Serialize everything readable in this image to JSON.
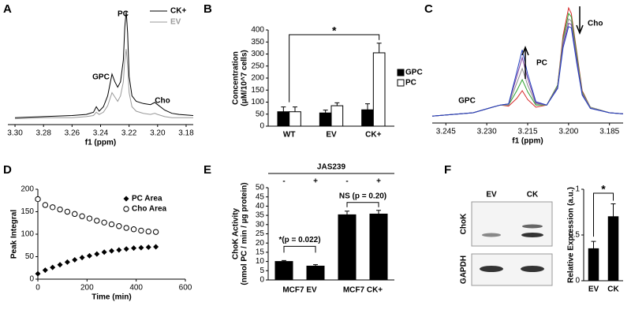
{
  "chart_data": [
    {
      "type": "line",
      "label": "A",
      "xlabel": "f1 (ppm)",
      "x": [
        3.3,
        3.28,
        3.26,
        3.25,
        3.245,
        3.243,
        3.241,
        3.238,
        3.235,
        3.232,
        3.23,
        3.228,
        3.226,
        3.224,
        3.223,
        3.222,
        3.221,
        3.22,
        3.218,
        3.215,
        3.21,
        3.205,
        3.202,
        3.2,
        3.195,
        3.19,
        3.185,
        3.175
      ],
      "xlim": [
        3.305,
        3.175
      ],
      "xticks": [
        {
          "value": 3.3,
          "label": "3.30"
        },
        3.28,
        3.26,
        3.24,
        3.22,
        {
          "value": 3.2,
          "label": "3.20"
        },
        3.18
      ],
      "ylim": [
        0,
        100
      ],
      "series": [
        {
          "name": "CK+",
          "color": "#000000",
          "values": [
            2,
            3,
            4,
            5,
            7,
            12,
            8,
            12,
            22,
            42,
            35,
            30,
            35,
            55,
            85,
            100,
            80,
            40,
            22,
            17,
            15,
            14,
            16,
            14,
            9,
            6,
            5,
            4
          ]
        },
        {
          "name": "EV",
          "color": "#999999",
          "values": [
            1,
            2,
            2,
            3,
            4,
            7,
            5,
            7,
            13,
            25,
            21,
            17,
            22,
            35,
            55,
            65,
            50,
            25,
            12,
            8,
            6,
            5,
            6,
            5,
            3,
            2,
            2,
            2
          ]
        }
      ],
      "annotations": [
        "PC",
        "GPC",
        "Cho"
      ]
    },
    {
      "type": "bar",
      "label": "B",
      "ylabel": [
        "Concentration",
        "(μM/10^7 cells)"
      ],
      "categories": [
        "WT",
        "EV",
        "CK+"
      ],
      "series": [
        {
          "name": "GPC",
          "color": "#000000",
          "values": [
            60,
            55,
            68
          ],
          "errors": [
            20,
            12,
            25
          ]
        },
        {
          "name": "PC",
          "color": "#ffffff",
          "values": [
            60,
            85,
            305
          ],
          "errors": [
            20,
            12,
            40
          ]
        }
      ],
      "ylim": [
        0,
        400
      ],
      "yticks": [
        0,
        50,
        100,
        150,
        200,
        250,
        300,
        350,
        400
      ],
      "annotations": [
        "*"
      ]
    },
    {
      "type": "line",
      "label": "C",
      "xlabel": "f1 (ppm)",
      "x": [
        3.25,
        3.235,
        3.228,
        3.225,
        3.222,
        3.219,
        3.217,
        3.215,
        3.212,
        3.208,
        3.204,
        3.202,
        3.2,
        3.199,
        3.197,
        3.195,
        3.192,
        3.185,
        3.18
      ],
      "xlim": [
        3.25,
        3.18
      ],
      "xticks": [
        3.245,
        {
          "value": 3.23,
          "label": "3.230"
        },
        3.215,
        {
          "value": 3.2,
          "label": "3.200"
        },
        3.185
      ],
      "ylim": [
        0,
        100
      ],
      "series": [
        {
          "color": "#d62728",
          "values": [
            2,
            5,
            10,
            12,
            11,
            18,
            25,
            17,
            10,
            12,
            30,
            75,
            100,
            95,
            60,
            25,
            10,
            5,
            4
          ]
        },
        {
          "color": "#2ca02c",
          "values": [
            2,
            5,
            10,
            12,
            12,
            25,
            35,
            24,
            12,
            12,
            30,
            72,
            95,
            92,
            58,
            24,
            10,
            5,
            4
          ]
        },
        {
          "color": "#8c8c8c",
          "values": [
            2,
            5,
            10,
            12,
            12,
            32,
            45,
            30,
            13,
            12,
            29,
            70,
            90,
            88,
            55,
            23,
            10,
            5,
            4
          ]
        },
        {
          "color": "#7b3f9e",
          "values": [
            2,
            5,
            10,
            12,
            13,
            38,
            55,
            36,
            14,
            12,
            28,
            67,
            86,
            85,
            53,
            22,
            9,
            5,
            4
          ]
        },
        {
          "color": "#1f3fbf",
          "values": [
            2,
            5,
            10,
            12,
            13,
            42,
            62,
            40,
            15,
            12,
            27,
            64,
            83,
            82,
            50,
            21,
            9,
            5,
            4
          ]
        }
      ],
      "annotations": [
        "GPC",
        "PC",
        "Cho"
      ]
    },
    {
      "type": "scatter",
      "label": "D",
      "xlabel": "Time (min)",
      "ylabel": [
        "Peak Integral"
      ],
      "x": [
        0,
        30,
        60,
        90,
        120,
        150,
        180,
        210,
        240,
        270,
        300,
        330,
        360,
        390,
        420,
        450,
        480
      ],
      "xlim": [
        0,
        600
      ],
      "xticks": [
        0,
        200,
        400,
        600
      ],
      "ylim": [
        0,
        200
      ],
      "yticks": [
        0,
        50,
        100,
        150,
        200
      ],
      "series": [
        {
          "name": "PC Area",
          "marker": "diamond",
          "color": "#000000",
          "values": [
            12,
            20,
            26,
            32,
            38,
            43,
            48,
            52,
            56,
            60,
            63,
            65,
            67,
            69,
            70,
            71,
            72
          ]
        },
        {
          "name": "Cho Area",
          "marker": "circle",
          "color": "#000000",
          "values": [
            178,
            165,
            160,
            155,
            150,
            145,
            140,
            135,
            130,
            126,
            122,
            118,
            114,
            111,
            108,
            106,
            105
          ]
        }
      ]
    },
    {
      "type": "bar",
      "label": "E",
      "header": "JAS239",
      "ylabel": [
        "ChoK Activity",
        "(nmol PC / min / µg protein)"
      ],
      "categories": [
        "-",
        "+",
        "-",
        "+"
      ],
      "groups": [
        "MCF7 EV",
        "MCF7 CK+"
      ],
      "values": [
        10,
        7.5,
        35.3,
        35.7
      ],
      "errors": [
        0.5,
        0.8,
        2,
        2
      ],
      "color": "#000000",
      "ylim": [
        0,
        50
      ],
      "yticks": [
        0,
        5,
        10,
        15,
        20,
        25,
        30,
        35,
        40,
        45,
        50
      ],
      "annotations": [
        "*(p = 0.022)",
        "NS (p = 0.20)"
      ]
    },
    {
      "type": "bar",
      "label": "F",
      "ylabel": [
        "Relative Expression (a.u.)"
      ],
      "categories": [
        "EV",
        "CK"
      ],
      "values": [
        0.35,
        0.7
      ],
      "errors": [
        0.08,
        0.14
      ],
      "color": "#000000",
      "ylim": [
        0,
        1
      ],
      "yticks": [
        0,
        0.5,
        1
      ],
      "blot": {
        "lanes": [
          "EV",
          "CK"
        ],
        "bands": [
          "ChoK",
          "GAPDH"
        ]
      },
      "annotations": [
        "*"
      ]
    }
  ]
}
